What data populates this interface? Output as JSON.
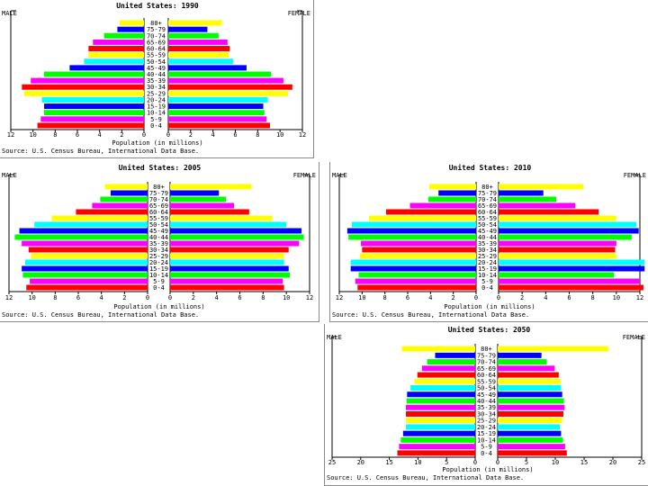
{
  "palette": [
    "#ff0000",
    "#ff00ff",
    "#00ff00",
    "#0000ff",
    "#00ffff",
    "#ffff00",
    "#ff0000",
    "#ff00ff",
    "#00ff00",
    "#0000ff",
    "#00ffff",
    "#ffff00",
    "#ff0000",
    "#ff00ff",
    "#00ff00",
    "#0000ff",
    "#ffff00"
  ],
  "chart_data": [
    {
      "type": "bar",
      "title": "United States: 1990",
      "left_label": "MALE",
      "right_label": "FEMALE",
      "xlabel": "Population (in millions)",
      "source": "Source: U.S. Census Bureau, International Data Base.",
      "categories": [
        "0-4",
        "5-9",
        "10-14",
        "15-19",
        "20-24",
        "25-29",
        "30-34",
        "35-39",
        "40-44",
        "45-49",
        "50-54",
        "55-59",
        "60-64",
        "65-69",
        "70-74",
        "75-79",
        "80+"
      ],
      "series": [
        {
          "name": "MALE",
          "values": [
            9.6,
            9.3,
            9.0,
            9.0,
            9.2,
            10.8,
            11.0,
            10.2,
            9.0,
            6.7,
            5.4,
            5.0,
            5.0,
            4.6,
            3.6,
            2.4,
            2.2
          ]
        },
        {
          "name": "FEMALE",
          "values": [
            9.1,
            8.8,
            8.6,
            8.5,
            8.9,
            10.7,
            11.1,
            10.3,
            9.2,
            7.0,
            5.8,
            5.4,
            5.5,
            5.3,
            4.5,
            3.5,
            4.8
          ]
        }
      ],
      "x_ticks": [
        "12",
        "10",
        "8",
        "6",
        "4",
        "2",
        "0",
        "0",
        "2",
        "4",
        "6",
        "8",
        "10",
        "12"
      ],
      "xlim": [
        0,
        12
      ]
    },
    {
      "type": "bar",
      "title": "United States: 2005",
      "left_label": "MALE",
      "right_label": "FEMALE",
      "xlabel": "Population (in millions)",
      "source": "Source: U.S. Census Bureau, International Data Base.",
      "categories": [
        "0-4",
        "5-9",
        "10-14",
        "15-19",
        "20-24",
        "25-29",
        "30-34",
        "35-39",
        "40-44",
        "45-49",
        "50-54",
        "55-59",
        "60-64",
        "65-69",
        "70-74",
        "75-79",
        "80+"
      ],
      "series": [
        {
          "name": "MALE",
          "values": [
            10.5,
            10.2,
            10.8,
            10.9,
            10.6,
            10.1,
            10.3,
            10.9,
            11.5,
            11.1,
            9.8,
            8.3,
            6.2,
            4.8,
            4.1,
            3.2,
            3.7
          ]
        },
        {
          "name": "FEMALE",
          "values": [
            9.8,
            9.7,
            10.3,
            10.2,
            9.8,
            9.8,
            10.2,
            11.1,
            11.5,
            11.3,
            10.0,
            8.8,
            6.8,
            5.5,
            4.8,
            4.2,
            7.0
          ]
        }
      ],
      "x_ticks": [
        "12",
        "10",
        "8",
        "6",
        "4",
        "2",
        "0",
        "0",
        "2",
        "4",
        "6",
        "8",
        "10",
        "12"
      ],
      "xlim": [
        0,
        12
      ]
    },
    {
      "type": "bar",
      "title": "United States: 2010",
      "left_label": "MALE",
      "right_label": "FEMALE",
      "xlabel": "Population (in millions)",
      "source": "Source: U.S. Census Bureau, International Data Base.",
      "categories": [
        "0-4",
        "5-9",
        "10-14",
        "15-19",
        "20-24",
        "25-29",
        "30-34",
        "35-39",
        "40-44",
        "45-49",
        "50-54",
        "55-59",
        "60-64",
        "65-69",
        "70-74",
        "75-79",
        "80+"
      ],
      "series": [
        {
          "name": "MALE",
          "values": [
            10.4,
            10.6,
            10.3,
            11.0,
            11.0,
            10.2,
            10.0,
            10.1,
            11.2,
            11.3,
            10.9,
            9.4,
            7.9,
            5.8,
            4.2,
            3.3,
            4.1
          ]
        },
        {
          "name": "FEMALE",
          "values": [
            12.3,
            12.0,
            9.8,
            12.4,
            12.4,
            10.0,
            9.9,
            10.0,
            11.3,
            11.9,
            11.7,
            10.0,
            8.5,
            6.5,
            4.9,
            3.8,
            7.2
          ]
        }
      ],
      "x_ticks": [
        "12",
        "10",
        "8",
        "6",
        "4",
        "2",
        "0",
        "0",
        "2",
        "4",
        "6",
        "8",
        "10",
        "12"
      ],
      "xlim": [
        0,
        12
      ]
    },
    {
      "type": "bar",
      "title": "United States: 2050",
      "left_label": "MALE",
      "right_label": "FEMALE",
      "xlabel": "Population (in millions)",
      "source": "Source: U.S. Census Bureau, International Data Base.",
      "categories": [
        "0-4",
        "5-9",
        "10-14",
        "15-19",
        "20-24",
        "25-29",
        "30-34",
        "35-39",
        "40-44",
        "45-49",
        "50-54",
        "55-59",
        "60-64",
        "65-69",
        "70-74",
        "75-79",
        "80+"
      ],
      "series": [
        {
          "name": "MALE",
          "values": [
            13.6,
            13.3,
            13.0,
            12.6,
            12.1,
            12.1,
            12.1,
            12.1,
            12.0,
            11.9,
            11.3,
            10.6,
            10.1,
            9.3,
            8.4,
            7.0,
            12.8
          ]
        },
        {
          "name": "FEMALE",
          "values": [
            12.0,
            11.7,
            11.3,
            11.0,
            10.8,
            11.2,
            11.4,
            11.6,
            11.5,
            11.2,
            11.0,
            10.9,
            10.6,
            9.9,
            8.5,
            7.6,
            19.2
          ]
        }
      ],
      "x_ticks": [
        "25",
        "20",
        "15",
        "10",
        "5",
        "0",
        "0",
        "5",
        "10",
        "15",
        "20",
        "25"
      ],
      "xlim": [
        0,
        25
      ]
    }
  ]
}
